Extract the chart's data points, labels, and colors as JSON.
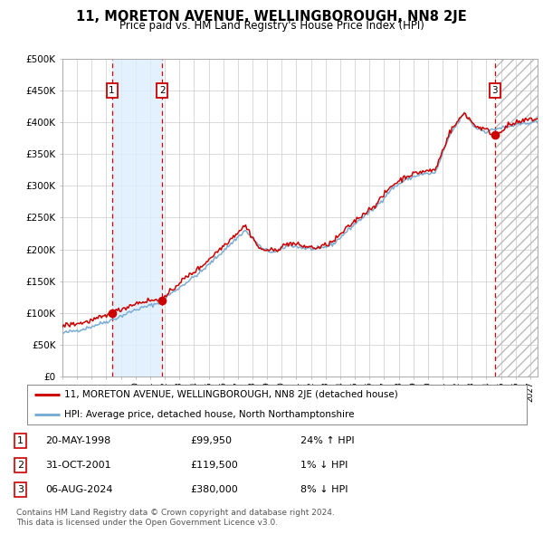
{
  "title": "11, MORETON AVENUE, WELLINGBOROUGH, NN8 2JE",
  "subtitle": "Price paid vs. HM Land Registry's House Price Index (HPI)",
  "ylabel_ticks": [
    "£0",
    "£50K",
    "£100K",
    "£150K",
    "£200K",
    "£250K",
    "£300K",
    "£350K",
    "£400K",
    "£450K",
    "£500K"
  ],
  "ytick_values": [
    0,
    50000,
    100000,
    150000,
    200000,
    250000,
    300000,
    350000,
    400000,
    450000,
    500000
  ],
  "xlim_start": 1995.0,
  "xlim_end": 2027.5,
  "ylim": [
    0,
    500000
  ],
  "background_color": "#ffffff",
  "plot_bg_color": "#ffffff",
  "grid_color": "#cccccc",
  "hpi_line_color": "#7aadd4",
  "price_line_color": "#cc0000",
  "sale_marker_color": "#cc0000",
  "sale_marker_size": 7,
  "shade_color": "#ddeeff",
  "dashed_line_color": "#cc0000",
  "legend1_label": "11, MORETON AVENUE, WELLINGBOROUGH, NN8 2JE (detached house)",
  "legend2_label": "HPI: Average price, detached house, North Northamptonshire",
  "sales": [
    {
      "num": 1,
      "date": "20-MAY-1998",
      "price": 99950,
      "pct": "24%",
      "dir": "↑",
      "year": 1998.38
    },
    {
      "num": 2,
      "date": "31-OCT-2001",
      "price": 119500,
      "pct": "1%",
      "dir": "↓",
      "year": 2001.83
    },
    {
      "num": 3,
      "date": "06-AUG-2024",
      "price": 380000,
      "pct": "8%",
      "dir": "↓",
      "year": 2024.58
    }
  ],
  "footnote1": "Contains HM Land Registry data © Crown copyright and database right 2024.",
  "footnote2": "This data is licensed under the Open Government Licence v3.0.",
  "future_start": 2024.58,
  "hpi_anchors_t": [
    1995.0,
    1996.5,
    1998.5,
    2000.0,
    2001.5,
    2003.0,
    2004.5,
    2007.5,
    2008.7,
    2009.5,
    2010.5,
    2011.5,
    2012.5,
    2013.5,
    2015.0,
    2016.5,
    2017.5,
    2018.5,
    2019.5,
    2020.5,
    2021.5,
    2022.5,
    2023.2,
    2024.0,
    2024.7,
    2025.5,
    2027.0
  ],
  "hpi_anchors_v": [
    68000,
    75000,
    90000,
    105000,
    115000,
    140000,
    165000,
    230000,
    200000,
    195000,
    207000,
    202000,
    200000,
    208000,
    240000,
    268000,
    295000,
    310000,
    318000,
    320000,
    380000,
    415000,
    392000,
    385000,
    390000,
    393000,
    400000
  ],
  "price_anchors_t": [
    1995.0,
    1996.5,
    1998.0,
    1998.38,
    2000.0,
    2001.0,
    2001.83,
    2003.0,
    2004.5,
    2007.5,
    2008.5,
    2009.5,
    2010.5,
    2011.5,
    2012.5,
    2013.5,
    2015.0,
    2016.5,
    2017.5,
    2018.5,
    2019.5,
    2020.5,
    2021.5,
    2022.5,
    2023.2,
    2024.0,
    2024.58,
    2025.5,
    2027.0
  ],
  "price_anchors_v": [
    80000,
    85000,
    95000,
    99950,
    115000,
    120000,
    119500,
    148000,
    173000,
    238000,
    200000,
    198000,
    210000,
    205000,
    202000,
    212000,
    245000,
    272000,
    300000,
    315000,
    322000,
    325000,
    385000,
    415000,
    395000,
    388000,
    380000,
    395000,
    405000
  ]
}
